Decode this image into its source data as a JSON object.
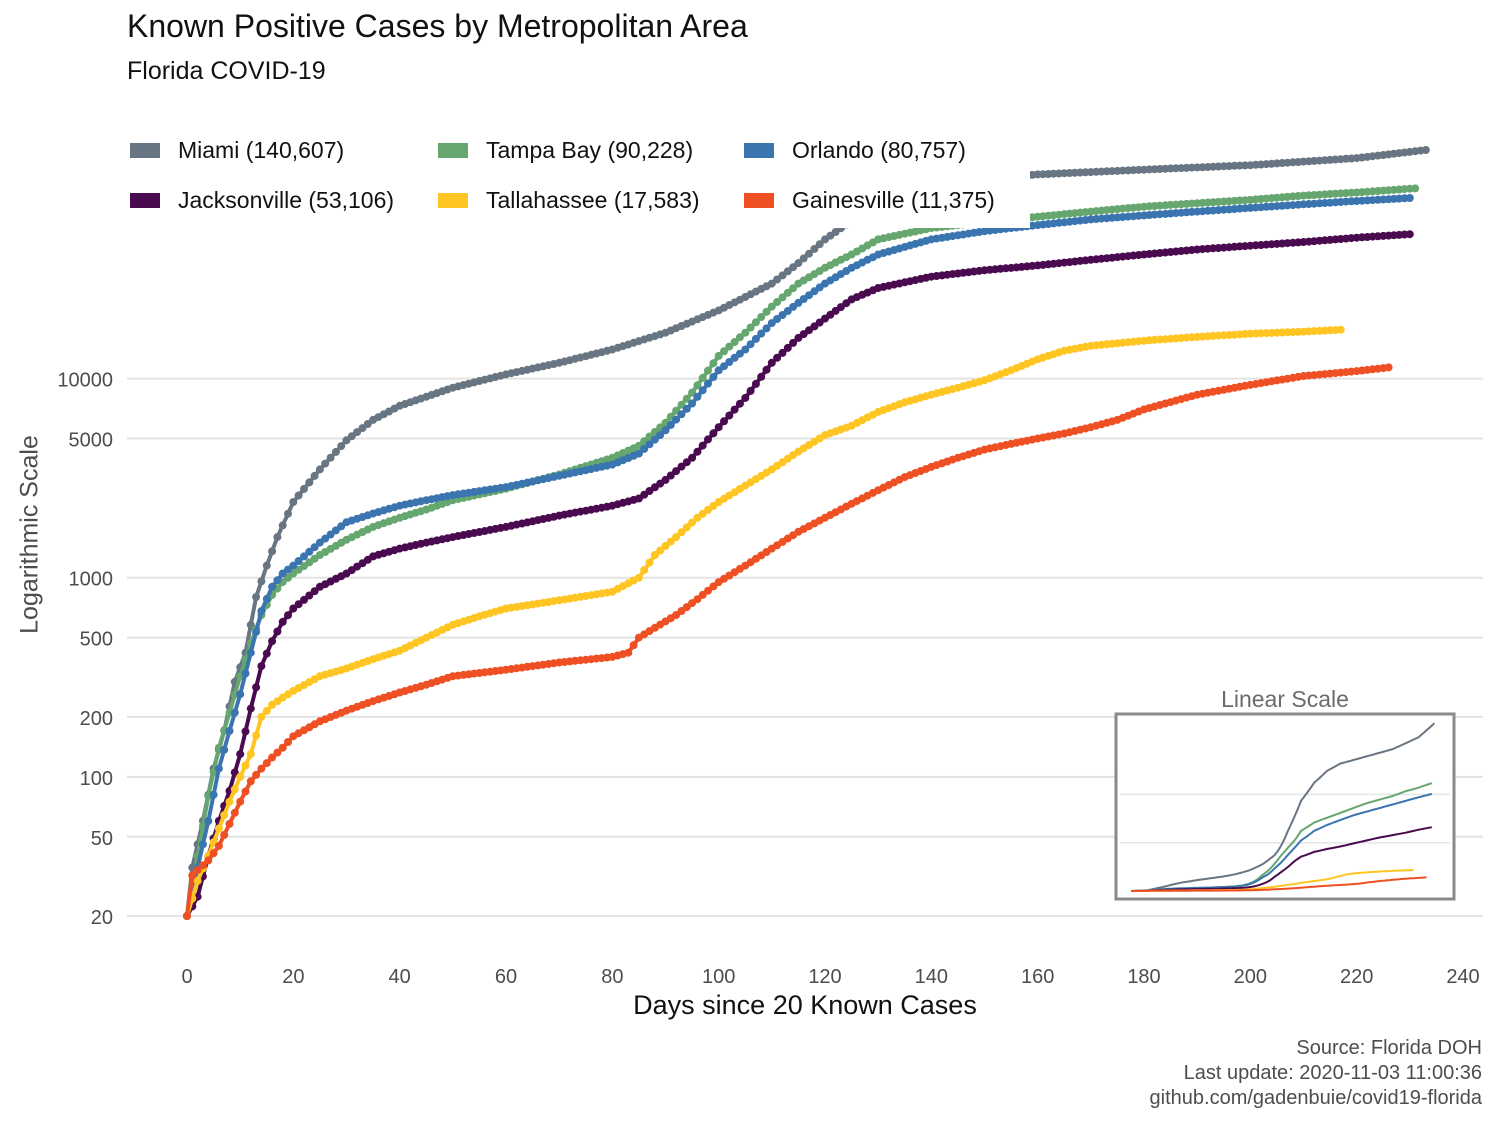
{
  "header": {
    "title": "Known Positive Cases by Metropolitan Area",
    "subtitle": "Florida COVID-19"
  },
  "legend": [
    {
      "label": "Miami (140,607)",
      "color": "#687582"
    },
    {
      "label": "Tampa Bay (90,228)",
      "color": "#66A66F"
    },
    {
      "label": "Orlando (80,757)",
      "color": "#3B75B0"
    },
    {
      "label": "Jacksonville (53,106)",
      "color": "#4A0A4F"
    },
    {
      "label": "Tallahassee (17,583)",
      "color": "#FFC523"
    },
    {
      "label": "Gainesville (11,375)",
      "color": "#EE5024"
    }
  ],
  "inset": {
    "title": "Linear Scale"
  },
  "caption": {
    "line1": "Source: Florida DOH",
    "line2": "Last update: 2020-11-03 11:00:36",
    "line3": "github.com/gadenbuie/covid19-florida"
  },
  "chart_data": {
    "type": "line",
    "xlabel": "Days since 20 Known Cases",
    "ylabel": "Logarithmic Scale",
    "x_scale": "linear",
    "y_scale": "log10",
    "xlim": [
      0,
      240
    ],
    "ylim": [
      20,
      140607
    ],
    "x_ticks": [
      "0",
      "20",
      "40",
      "60",
      "80",
      "100",
      "120",
      "140",
      "160",
      "180",
      "200",
      "220",
      "240"
    ],
    "y_ticks": [
      {
        "value": 20,
        "label": "20"
      },
      {
        "value": 50,
        "label": "50"
      },
      {
        "value": 100,
        "label": "100"
      },
      {
        "value": 200,
        "label": "200"
      },
      {
        "value": 500,
        "label": "500"
      },
      {
        "value": 1000,
        "label": "1000"
      },
      {
        "value": 5000,
        "label": "5000"
      },
      {
        "value": 10000,
        "label": "10000"
      }
    ],
    "grid": true,
    "legend_position": "top",
    "series": [
      {
        "name": "Miami",
        "color": "#687582",
        "points": [
          [
            0,
            20
          ],
          [
            1,
            35
          ],
          [
            3,
            60
          ],
          [
            5,
            110
          ],
          [
            7,
            170
          ],
          [
            9,
            300
          ],
          [
            11,
            420
          ],
          [
            13,
            800
          ],
          [
            15,
            1150
          ],
          [
            17,
            1600
          ],
          [
            20,
            2400
          ],
          [
            25,
            3500
          ],
          [
            30,
            4900
          ],
          [
            35,
            6200
          ],
          [
            40,
            7300
          ],
          [
            50,
            9000
          ],
          [
            60,
            10500
          ],
          [
            70,
            12000
          ],
          [
            80,
            14000
          ],
          [
            90,
            17000
          ],
          [
            100,
            22000
          ],
          [
            110,
            30000
          ],
          [
            115,
            38000
          ],
          [
            120,
            50000
          ],
          [
            125,
            62000
          ],
          [
            130,
            75000
          ],
          [
            140,
            90000
          ],
          [
            150,
            100000
          ],
          [
            160,
            106000
          ],
          [
            180,
            112000
          ],
          [
            200,
            118000
          ],
          [
            220,
            128000
          ],
          [
            233,
            140607
          ]
        ]
      },
      {
        "name": "Tampa Bay",
        "color": "#66A66F",
        "points": [
          [
            0,
            20
          ],
          [
            2,
            40
          ],
          [
            4,
            80
          ],
          [
            6,
            140
          ],
          [
            8,
            210
          ],
          [
            10,
            320
          ],
          [
            12,
            470
          ],
          [
            14,
            650
          ],
          [
            16,
            820
          ],
          [
            18,
            950
          ],
          [
            20,
            1050
          ],
          [
            25,
            1300
          ],
          [
            30,
            1550
          ],
          [
            35,
            1800
          ],
          [
            40,
            2000
          ],
          [
            45,
            2200
          ],
          [
            50,
            2450
          ],
          [
            60,
            2800
          ],
          [
            70,
            3300
          ],
          [
            80,
            4000
          ],
          [
            85,
            4600
          ],
          [
            90,
            6000
          ],
          [
            95,
            8500
          ],
          [
            100,
            13000
          ],
          [
            105,
            17000
          ],
          [
            110,
            23000
          ],
          [
            115,
            30000
          ],
          [
            120,
            36000
          ],
          [
            125,
            42000
          ],
          [
            130,
            50000
          ],
          [
            140,
            57000
          ],
          [
            150,
            61000
          ],
          [
            160,
            65000
          ],
          [
            170,
            69000
          ],
          [
            180,
            73000
          ],
          [
            190,
            76000
          ],
          [
            200,
            79000
          ],
          [
            210,
            83000
          ],
          [
            220,
            86000
          ],
          [
            231,
            90228
          ]
        ]
      },
      {
        "name": "Orlando",
        "color": "#3B75B0",
        "points": [
          [
            0,
            20
          ],
          [
            2,
            35
          ],
          [
            4,
            60
          ],
          [
            6,
            110
          ],
          [
            8,
            170
          ],
          [
            10,
            260
          ],
          [
            12,
            420
          ],
          [
            14,
            680
          ],
          [
            16,
            900
          ],
          [
            18,
            1050
          ],
          [
            20,
            1150
          ],
          [
            25,
            1500
          ],
          [
            30,
            1900
          ],
          [
            35,
            2100
          ],
          [
            40,
            2300
          ],
          [
            45,
            2450
          ],
          [
            50,
            2600
          ],
          [
            60,
            2850
          ],
          [
            70,
            3250
          ],
          [
            80,
            3700
          ],
          [
            85,
            4200
          ],
          [
            90,
            5500
          ],
          [
            95,
            7500
          ],
          [
            100,
            11000
          ],
          [
            105,
            14000
          ],
          [
            110,
            19000
          ],
          [
            115,
            24000
          ],
          [
            120,
            30000
          ],
          [
            125,
            36000
          ],
          [
            130,
            42000
          ],
          [
            140,
            50000
          ],
          [
            150,
            55000
          ],
          [
            160,
            59000
          ],
          [
            170,
            63000
          ],
          [
            180,
            66000
          ],
          [
            190,
            69000
          ],
          [
            200,
            72000
          ],
          [
            210,
            75000
          ],
          [
            220,
            78000
          ],
          [
            230,
            80757
          ]
        ]
      },
      {
        "name": "Jacksonville",
        "color": "#4A0A4F",
        "points": [
          [
            0,
            20
          ],
          [
            2,
            25
          ],
          [
            4,
            40
          ],
          [
            6,
            60
          ],
          [
            8,
            85
          ],
          [
            10,
            130
          ],
          [
            12,
            220
          ],
          [
            14,
            360
          ],
          [
            16,
            480
          ],
          [
            18,
            600
          ],
          [
            20,
            700
          ],
          [
            25,
            900
          ],
          [
            30,
            1050
          ],
          [
            35,
            1280
          ],
          [
            40,
            1400
          ],
          [
            45,
            1500
          ],
          [
            50,
            1600
          ],
          [
            60,
            1800
          ],
          [
            70,
            2050
          ],
          [
            80,
            2300
          ],
          [
            85,
            2500
          ],
          [
            90,
            3100
          ],
          [
            95,
            4000
          ],
          [
            100,
            5700
          ],
          [
            105,
            8000
          ],
          [
            110,
            12000
          ],
          [
            115,
            16000
          ],
          [
            120,
            20000
          ],
          [
            125,
            25000
          ],
          [
            130,
            28500
          ],
          [
            140,
            32500
          ],
          [
            150,
            35000
          ],
          [
            160,
            37000
          ],
          [
            170,
            39500
          ],
          [
            180,
            42000
          ],
          [
            190,
            44500
          ],
          [
            200,
            46500
          ],
          [
            210,
            48500
          ],
          [
            220,
            51000
          ],
          [
            230,
            53106
          ]
        ]
      },
      {
        "name": "Tallahassee",
        "color": "#FFC523",
        "points": [
          [
            0,
            20
          ],
          [
            2,
            30
          ],
          [
            4,
            40
          ],
          [
            6,
            55
          ],
          [
            8,
            75
          ],
          [
            10,
            100
          ],
          [
            12,
            130
          ],
          [
            14,
            200
          ],
          [
            16,
            230
          ],
          [
            18,
            250
          ],
          [
            20,
            270
          ],
          [
            25,
            320
          ],
          [
            30,
            350
          ],
          [
            35,
            390
          ],
          [
            40,
            430
          ],
          [
            45,
            500
          ],
          [
            50,
            580
          ],
          [
            55,
            640
          ],
          [
            60,
            700
          ],
          [
            70,
            770
          ],
          [
            80,
            850
          ],
          [
            85,
            1000
          ],
          [
            88,
            1300
          ],
          [
            92,
            1600
          ],
          [
            96,
            2000
          ],
          [
            100,
            2400
          ],
          [
            105,
            2900
          ],
          [
            110,
            3500
          ],
          [
            115,
            4300
          ],
          [
            120,
            5200
          ],
          [
            125,
            5800
          ],
          [
            130,
            6800
          ],
          [
            135,
            7600
          ],
          [
            140,
            8300
          ],
          [
            145,
            9000
          ],
          [
            150,
            9800
          ],
          [
            155,
            11000
          ],
          [
            160,
            12500
          ],
          [
            165,
            13800
          ],
          [
            170,
            14600
          ],
          [
            180,
            15500
          ],
          [
            190,
            16200
          ],
          [
            200,
            16800
          ],
          [
            210,
            17200
          ],
          [
            217,
            17583
          ]
        ]
      },
      {
        "name": "Gainesville",
        "color": "#EE5024",
        "points": [
          [
            0,
            20
          ],
          [
            1,
            32
          ],
          [
            2,
            34
          ],
          [
            4,
            38
          ],
          [
            6,
            45
          ],
          [
            8,
            58
          ],
          [
            10,
            75
          ],
          [
            12,
            95
          ],
          [
            14,
            110
          ],
          [
            16,
            125
          ],
          [
            18,
            140
          ],
          [
            20,
            160
          ],
          [
            25,
            190
          ],
          [
            30,
            215
          ],
          [
            35,
            240
          ],
          [
            40,
            265
          ],
          [
            45,
            290
          ],
          [
            50,
            320
          ],
          [
            60,
            345
          ],
          [
            70,
            375
          ],
          [
            80,
            400
          ],
          [
            83,
            420
          ],
          [
            85,
            500
          ],
          [
            88,
            560
          ],
          [
            92,
            650
          ],
          [
            96,
            780
          ],
          [
            100,
            950
          ],
          [
            105,
            1150
          ],
          [
            110,
            1400
          ],
          [
            115,
            1700
          ],
          [
            120,
            2000
          ],
          [
            125,
            2350
          ],
          [
            130,
            2750
          ],
          [
            135,
            3200
          ],
          [
            140,
            3600
          ],
          [
            145,
            4000
          ],
          [
            150,
            4400
          ],
          [
            155,
            4700
          ],
          [
            160,
            5000
          ],
          [
            165,
            5300
          ],
          [
            170,
            5700
          ],
          [
            175,
            6200
          ],
          [
            180,
            7000
          ],
          [
            190,
            8300
          ],
          [
            200,
            9300
          ],
          [
            210,
            10300
          ],
          [
            220,
            10900
          ],
          [
            226,
            11375
          ]
        ]
      }
    ]
  }
}
